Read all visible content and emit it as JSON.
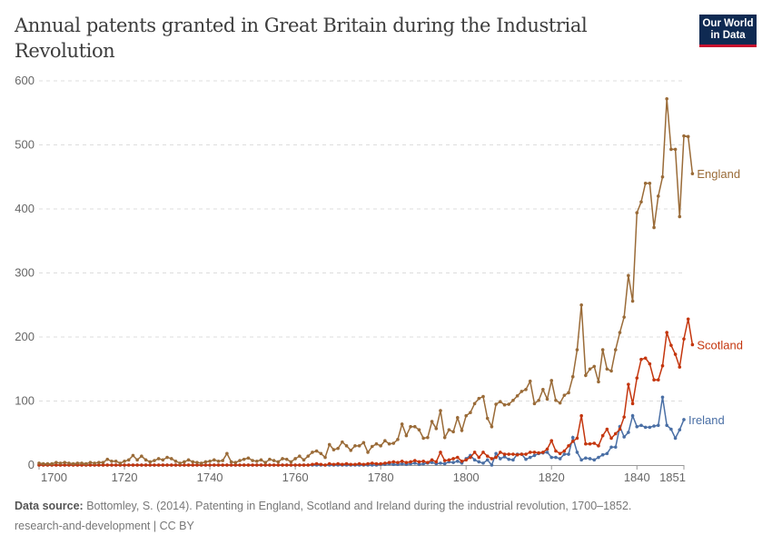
{
  "header": {
    "title": "Annual patents granted in Great Britain during the Industrial Revolution",
    "logo_text": "Our World in Data"
  },
  "footer": {
    "source_label": "Data source:",
    "source_text": "Bottomley, S. (2014). Patenting in England, Scotland and Ireland during the industrial revolution, 1700–1852.",
    "line2": "research-and-development | CC BY"
  },
  "chart_data": {
    "type": "line",
    "title": "Annual patents granted in Great Britain during the Industrial Revolution",
    "xlabel": "",
    "ylabel": "",
    "xlim": [
      1700,
      1851
    ],
    "ylim": [
      0,
      600
    ],
    "x_ticks": [
      "1700",
      "1720",
      "1740",
      "1760",
      "1780",
      "1800",
      "1820",
      "1840",
      "1851"
    ],
    "y_ticks": [
      "0",
      "100",
      "200",
      "300",
      "400",
      "500",
      "600"
    ],
    "grid": "horizontal dashed",
    "legend": "inline labels at right end of lines",
    "x_start": 1700,
    "series": [
      {
        "name": "England",
        "color": "#9a6b38",
        "values": [
          3,
          2,
          2,
          2,
          4,
          3,
          4,
          3,
          2,
          3,
          3,
          2,
          4,
          3,
          4,
          4,
          9,
          6,
          6,
          3,
          6,
          8,
          15,
          8,
          14,
          8,
          5,
          7,
          10,
          8,
          12,
          10,
          6,
          3,
          5,
          8,
          5,
          4,
          3,
          5,
          6,
          8,
          6,
          7,
          18,
          5,
          4,
          7,
          9,
          11,
          7,
          6,
          8,
          4,
          9,
          7,
          5,
          10,
          9,
          5,
          10,
          14,
          8,
          14,
          20,
          22,
          18,
          12,
          32,
          24,
          26,
          36,
          30,
          23,
          30,
          30,
          35,
          20,
          29,
          33,
          30,
          38,
          33,
          34,
          40,
          64,
          46,
          60,
          60,
          55,
          42,
          43,
          68,
          57,
          85,
          43,
          55,
          52,
          74,
          54,
          77,
          82,
          96,
          104,
          107,
          73,
          60,
          95,
          99,
          94,
          95,
          101,
          108,
          115,
          118,
          131,
          96,
          101,
          118,
          103,
          132,
          101,
          97,
          109,
          113,
          138,
          180,
          250,
          140,
          150,
          154,
          130,
          180,
          150,
          147,
          180,
          207,
          231,
          296,
          256,
          394,
          411,
          440,
          440,
          371,
          420,
          450,
          572,
          493,
          493,
          388,
          514,
          513,
          455
        ]
      },
      {
        "name": "Scotland",
        "color": "#c4360e",
        "values": [
          0,
          0,
          0,
          0,
          0,
          0,
          0,
          0,
          0,
          0,
          0,
          0,
          0,
          0,
          0,
          0,
          0,
          0,
          0,
          0,
          0,
          0,
          0,
          0,
          0,
          0,
          0,
          0,
          0,
          0,
          0,
          0,
          0,
          0,
          0,
          0,
          0,
          0,
          0,
          0,
          0,
          0,
          0,
          0,
          0,
          0,
          0,
          0,
          0,
          0,
          0,
          0,
          0,
          0,
          0,
          0,
          0,
          0,
          0,
          0,
          0,
          0,
          0,
          0,
          1,
          2,
          1,
          0,
          2,
          1,
          2,
          1,
          2,
          1,
          1,
          2,
          1,
          2,
          3,
          2,
          2,
          3,
          4,
          5,
          4,
          6,
          4,
          5,
          7,
          5,
          6,
          4,
          8,
          5,
          20,
          7,
          8,
          10,
          12,
          6,
          8,
          12,
          20,
          12,
          20,
          14,
          10,
          12,
          20,
          17,
          17,
          17,
          16,
          17,
          17,
          20,
          20,
          19,
          20,
          25,
          38,
          22,
          18,
          22,
          30,
          37,
          42,
          77,
          33,
          33,
          34,
          30,
          46,
          56,
          42,
          49,
          56,
          75,
          126,
          96,
          136,
          165,
          167,
          158,
          133,
          133,
          155,
          207,
          187,
          173,
          153,
          197,
          228,
          188
        ]
      },
      {
        "name": "Ireland",
        "color": "#4a6fa5",
        "values": [
          0,
          0,
          0,
          0,
          0,
          0,
          0,
          0,
          0,
          0,
          0,
          0,
          0,
          0,
          0,
          0,
          0,
          0,
          0,
          0,
          0,
          0,
          0,
          0,
          0,
          0,
          0,
          0,
          0,
          0,
          0,
          0,
          0,
          0,
          0,
          0,
          0,
          0,
          0,
          0,
          0,
          0,
          0,
          0,
          0,
          0,
          0,
          0,
          0,
          0,
          0,
          0,
          0,
          0,
          0,
          0,
          0,
          0,
          0,
          0,
          0,
          0,
          0,
          0,
          0,
          0,
          0,
          0,
          0,
          0,
          0,
          0,
          0,
          0,
          0,
          0,
          0,
          0,
          0,
          0,
          1,
          1,
          2,
          1,
          1,
          2,
          1,
          2,
          3,
          1,
          2,
          3,
          4,
          2,
          3,
          2,
          5,
          4,
          6,
          3,
          10,
          15,
          8,
          5,
          3,
          8,
          0,
          18,
          10,
          13,
          9,
          8,
          17,
          17,
          9,
          12,
          15,
          18,
          19,
          20,
          12,
          12,
          10,
          17,
          17,
          43,
          20,
          8,
          11,
          10,
          8,
          12,
          16,
          18,
          28,
          28,
          60,
          44,
          51,
          77,
          60,
          62,
          59,
          59,
          61,
          62,
          106,
          62,
          56,
          42,
          55,
          71
        ]
      }
    ]
  }
}
